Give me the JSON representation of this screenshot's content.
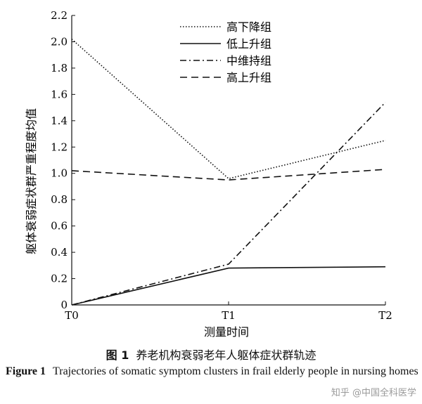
{
  "chart_data": {
    "type": "line",
    "categories": [
      "T0",
      "T1",
      "T2"
    ],
    "series": [
      {
        "name": "高下降组",
        "values": [
          2.02,
          0.96,
          1.25
        ],
        "dash": "dotted"
      },
      {
        "name": "低上升组",
        "values": [
          0.0,
          0.28,
          0.29
        ],
        "dash": "solid"
      },
      {
        "name": "中维持组",
        "values": [
          0.0,
          0.31,
          1.54
        ],
        "dash": "dashdot"
      },
      {
        "name": "高上升组",
        "values": [
          1.02,
          0.95,
          1.03
        ],
        "dash": "dashed"
      }
    ],
    "ylim": [
      0,
      2.2
    ],
    "yticks": [
      "0",
      "0.2",
      "0.4",
      "0.6",
      "0.8",
      "1.0",
      "1.2",
      "1.4",
      "1.6",
      "1.8",
      "2.0",
      "2.2"
    ],
    "xlabel": "测量时间",
    "ylabel": "躯体衰弱症状群严重程度均值",
    "legend_position": "top-right",
    "grid": false,
    "line_color": "#111111"
  },
  "caption": {
    "cn_label": "图 1",
    "cn_text": "养老机构衰弱老年人躯体症状群轨迹",
    "en_label": "Figure 1",
    "en_text": "Trajectories of somatic symptom clusters in frail elderly people in nursing homes"
  },
  "watermark": "知乎 @中国全科医学"
}
